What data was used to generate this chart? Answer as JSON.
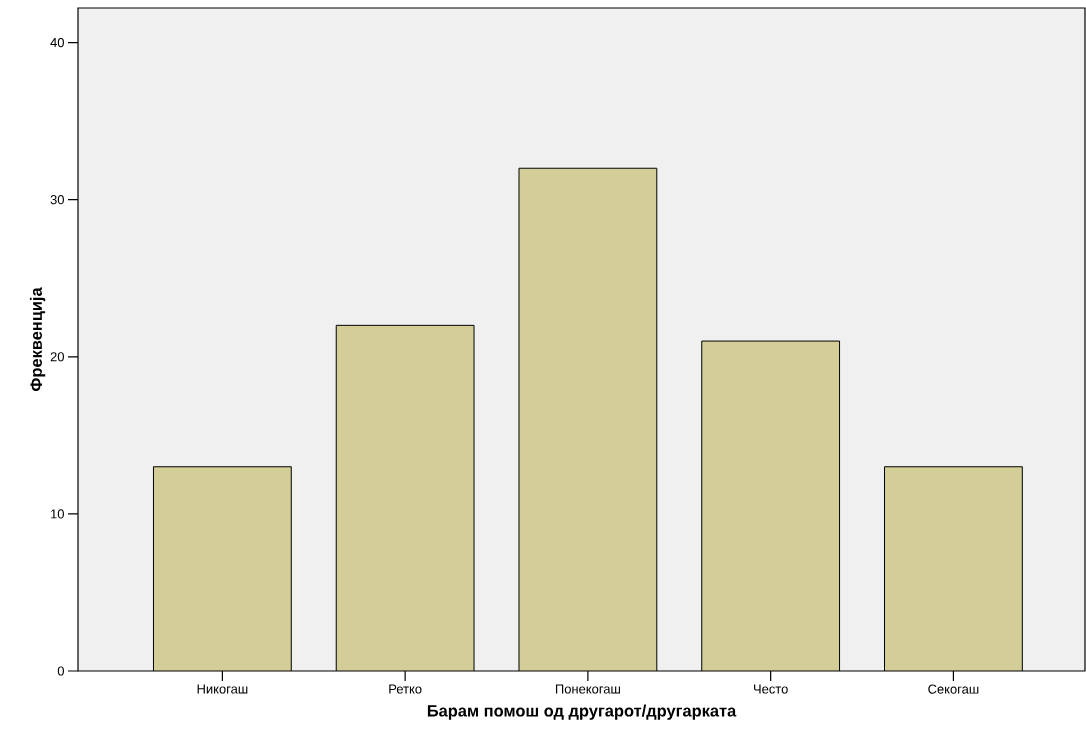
{
  "chart_data": {
    "type": "bar",
    "xlabel": "Барам помош од другарот/другарката",
    "ylabel": "Фреквенција",
    "categories": [
      "Никогаш",
      "Ретко",
      "Понекогаш",
      "Често",
      "Секогаш"
    ],
    "values": [
      13,
      22,
      32,
      21,
      13
    ],
    "color": "#d3ce97",
    "ylim": [
      0,
      42.2
    ],
    "yticks": [
      0,
      10,
      20,
      30,
      40
    ],
    "grid": false
  }
}
